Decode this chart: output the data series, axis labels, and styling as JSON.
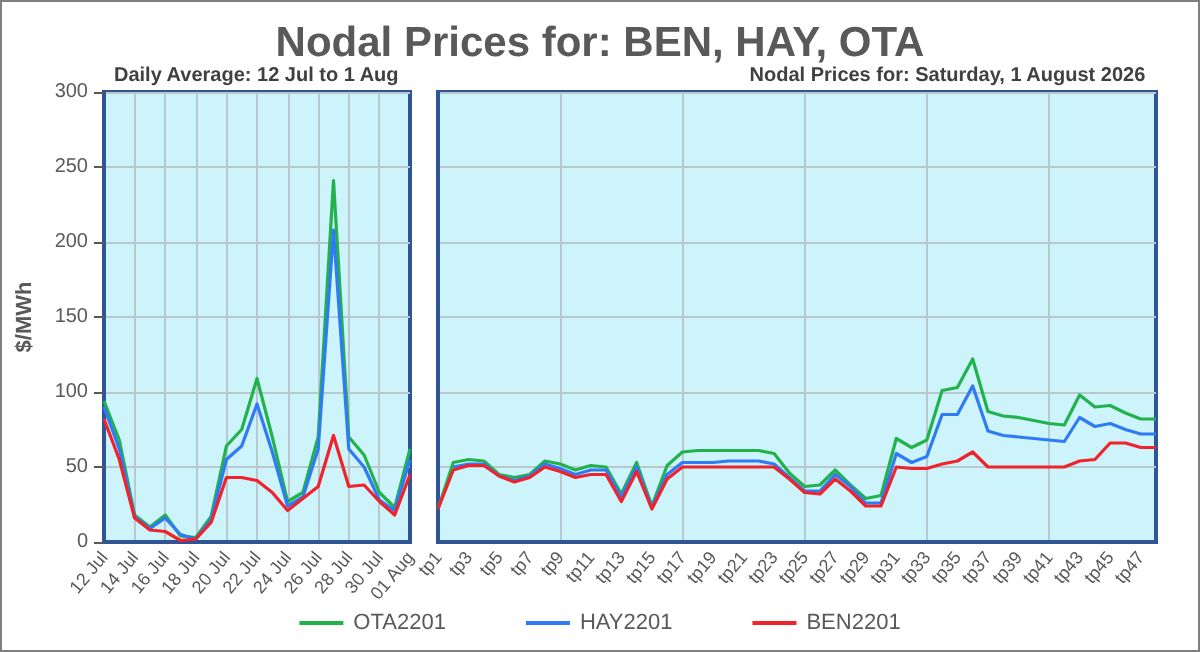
{
  "chart_data": [
    {
      "type": "line",
      "title": "Nodal Prices for: BEN, HAY, OTA",
      "subtitle": "Daily Average: 12 Jul to 1 Aug",
      "ylabel": "$/MWh",
      "categories": [
        "12 Jul",
        null,
        "14 Jul",
        null,
        "16 Jul",
        null,
        "18 Jul",
        null,
        "20 Jul",
        null,
        "22 Jul",
        null,
        "24 Jul",
        null,
        "26 Jul",
        null,
        "28 Jul",
        null,
        "30 Jul",
        null,
        "01 Aug"
      ],
      "series": [
        {
          "name": "OTA2201",
          "color": "#22b24c",
          "values": [
            94,
            68,
            18,
            10,
            18,
            4,
            3,
            17,
            64,
            75,
            109,
            70,
            27,
            33,
            70,
            241,
            70,
            58,
            33,
            23,
            62
          ]
        },
        {
          "name": "HAY2201",
          "color": "#2f7bf5",
          "values": [
            90,
            62,
            17,
            9,
            16,
            5,
            2,
            15,
            55,
            64,
            92,
            60,
            24,
            30,
            62,
            208,
            62,
            50,
            28,
            21,
            55
          ]
        },
        {
          "name": "BEN2201",
          "color": "#f0222a",
          "values": [
            82,
            55,
            16,
            8,
            7,
            1,
            2,
            13,
            43,
            43,
            41,
            33,
            21,
            29,
            37,
            71,
            37,
            38,
            27,
            18,
            45
          ]
        }
      ],
      "ylim": [
        0,
        300
      ],
      "yticks": [
        0,
        50,
        100,
        150,
        200,
        250,
        300
      ],
      "grid": true,
      "legend": "bottom",
      "marker": "none",
      "line_style": "solid"
    },
    {
      "type": "line",
      "subtitle": "Nodal Prices for: Saturday, 1 August 2026",
      "categories": [
        "tp1",
        null,
        "tp3",
        null,
        "tp5",
        null,
        "tp7",
        null,
        "tp9",
        null,
        "tp11",
        null,
        "tp13",
        null,
        "tp15",
        null,
        "tp17",
        null,
        "tp19",
        null,
        "tp21",
        null,
        "tp23",
        null,
        "tp25",
        null,
        "tp27",
        null,
        "tp29",
        null,
        "tp31",
        null,
        "tp33",
        null,
        "tp35",
        null,
        "tp37",
        null,
        "tp39",
        null,
        "tp41",
        null,
        "tp43",
        null,
        "tp45",
        null,
        "tp47",
        null
      ],
      "series": [
        {
          "color": "#22b24c",
          "values": [
            22,
            53,
            55,
            54,
            45,
            43,
            45,
            54,
            52,
            48,
            51,
            50,
            32,
            53,
            24,
            51,
            60,
            61,
            61,
            61,
            61,
            61,
            59,
            46,
            37,
            38,
            48,
            38,
            29,
            31,
            69,
            63,
            68,
            101,
            103,
            122,
            87,
            84,
            83,
            81,
            79,
            78,
            98,
            90,
            91,
            86,
            82,
            82
          ]
        },
        {
          "color": "#2f7bf5",
          "values": [
            null,
            50,
            52,
            52,
            44,
            41,
            44,
            52,
            49,
            45,
            48,
            48,
            30,
            50,
            23,
            45,
            53,
            53,
            53,
            54,
            54,
            54,
            52,
            43,
            34,
            34,
            45,
            37,
            26,
            26,
            59,
            53,
            57,
            85,
            85,
            104,
            74,
            71,
            70,
            69,
            68,
            67,
            83,
            77,
            79,
            75,
            72,
            72
          ]
        },
        {
          "color": "#f0222a",
          "values": [
            22,
            48,
            51,
            51,
            44,
            40,
            43,
            50,
            47,
            43,
            45,
            45,
            27,
            47,
            22,
            42,
            50,
            50,
            50,
            50,
            50,
            50,
            50,
            42,
            33,
            32,
            42,
            34,
            24,
            24,
            50,
            49,
            49,
            52,
            54,
            60,
            50,
            50,
            50,
            50,
            50,
            50,
            54,
            55,
            66,
            66,
            63,
            63
          ]
        }
      ],
      "ylim": [
        0,
        300
      ],
      "yticks": [
        0,
        50,
        100,
        150,
        200,
        250,
        300
      ],
      "tick_labels": "x",
      "grid": true,
      "marker": "none",
      "line_style": "solid"
    }
  ]
}
